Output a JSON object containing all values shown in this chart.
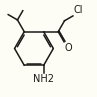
{
  "bg_color": "#fdfdf5",
  "line_color": "#1a1a1a",
  "text_color": "#1a1a1a",
  "lw": 1.1,
  "cl_label": "Cl",
  "o_label": "O",
  "nh2_label": "NH2",
  "font_size_label": 7.0
}
